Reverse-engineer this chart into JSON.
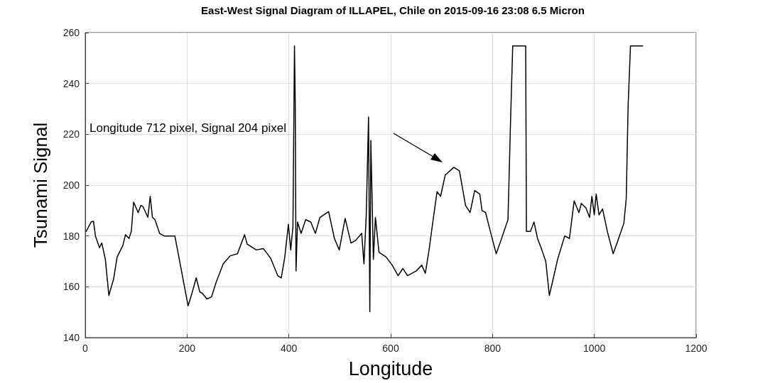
{
  "chart_data": {
    "type": "line",
    "title": "East-West Signal Diagram of ILLAPEL, Chile on 2015-09-16 23:08 6.5 Micron",
    "xlabel": "Longitude",
    "ylabel": "Tsunami Signal",
    "x": [
      2,
      11.6,
      16.2,
      20,
      28,
      32.5,
      39.5,
      46.4,
      55.7,
      62.6,
      74,
      79,
      86,
      90.5,
      95,
      104,
      109,
      113.6,
      123,
      127.6,
      132,
      137,
      146,
      155,
      176,
      183,
      192.5,
      202,
      209,
      218,
      225,
      229.6,
      239,
      248,
      257,
      271,
      285,
      299,
      313,
      318,
      336,
      350,
      364,
      378,
      385,
      392,
      399,
      403.6,
      408,
      411,
      412.5,
      414,
      417,
      424,
      433,
      443,
      452,
      461,
      478,
      489.5,
      499,
      510.5,
      522,
      531,
      543,
      547.5,
      552,
      556.5,
      559,
      561,
      566,
      570,
      577,
      591,
      603,
      614.5,
      624,
      633,
      650,
      661,
      668,
      675,
      684,
      691,
      698,
      707,
      724,
      735,
      747,
      756,
      765,
      775,
      779.4,
      786.4,
      798,
      807.2,
      816.5,
      825.7,
      830.4,
      835,
      839.7,
      865.2,
      866.6,
      874.5,
      881.5,
      888.4,
      895.4,
      904.7,
      911.6,
      918.6,
      927.9,
      941.8,
      951.1,
      960.4,
      969.7,
      974.4,
      983.6,
      990.6,
      995.2,
      999.9,
      1003.6,
      1009.2,
      1016.2,
      1025.5,
      1037,
      1046.4,
      1058,
      1062.7,
      1066.4,
      1071,
      1095
    ],
    "series": [
      {
        "color": "#000000",
        "values": [
          181.8,
          185.5,
          185.8,
          180,
          175.4,
          177.2,
          170.8,
          156.6,
          163,
          171.7,
          176.3,
          180.5,
          179,
          181.8,
          193.3,
          189.2,
          192,
          191.5,
          187.3,
          195.6,
          187.3,
          186.4,
          181,
          180,
          180,
          172.7,
          162.6,
          152.5,
          157,
          163.5,
          158,
          157.5,
          155.2,
          156,
          161.7,
          169,
          172.2,
          173,
          180.5,
          176.8,
          174.5,
          175,
          171.3,
          164.4,
          163.5,
          171.7,
          184.6,
          174.5,
          183.7,
          254.8,
          233,
          166.2,
          185.5,
          181,
          186.4,
          185.5,
          181,
          187.3,
          189.6,
          179,
          174.5,
          186.9,
          177.2,
          178.2,
          181,
          169,
          188.3,
          226.8,
          150.2,
          217.6,
          170.8,
          187.3,
          173.6,
          171.7,
          168.5,
          164.4,
          167.2,
          164.4,
          166.2,
          168.5,
          165.3,
          174,
          187.3,
          197.4,
          195.6,
          203.9,
          207,
          205.6,
          192,
          189.2,
          197.9,
          196.5,
          190,
          189.2,
          180,
          173,
          178.2,
          183.7,
          186.4,
          222,
          254.8,
          254.8,
          181.8,
          181.8,
          185.5,
          179,
          175.4,
          169.9,
          156.6,
          162.6,
          170.8,
          180,
          179,
          193.8,
          189.2,
          192.8,
          191,
          187.3,
          195.6,
          188.3,
          196.5,
          188.3,
          190.6,
          181.8,
          173,
          178.2,
          185,
          194.7,
          231.4,
          254.8,
          254.8
        ]
      }
    ],
    "xlim": [
      0,
      1200
    ],
    "xticks": [
      0,
      200,
      400,
      600,
      800,
      1000,
      1200
    ],
    "ylim": [
      140,
      260
    ],
    "yticks": [
      140,
      160,
      180,
      200,
      220,
      240,
      260
    ],
    "grid": true,
    "marker": "none",
    "line_style": "solid",
    "annotations": [
      "Longitude 712 pixel, Signal 204 pixel"
    ]
  }
}
